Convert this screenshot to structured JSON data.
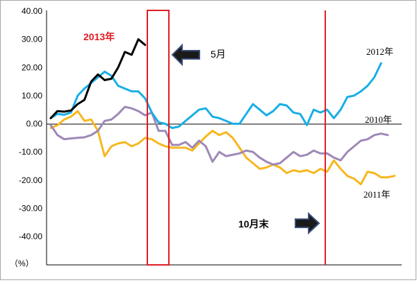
{
  "chart_data": {
    "type": "line",
    "ylim": [
      -40,
      40
    ],
    "yticks": [
      "40.00",
      "30.00",
      "20.00",
      "10.00",
      "0.00",
      "-10.00",
      "-20.00",
      "-30.00",
      "-40.00"
    ],
    "yunit": "（%）",
    "grid": false,
    "series": [
      {
        "name": "2013年",
        "color": "#000000",
        "values": [
          2,
          4.5,
          4.3,
          4.7,
          7,
          8.5,
          15,
          17.5,
          15.5,
          16,
          20,
          25.5,
          24.5,
          30,
          28
        ]
      },
      {
        "name": "2012年",
        "color": "#19aee6",
        "values": [
          2,
          3.5,
          3.2,
          4,
          10,
          12.5,
          14.5,
          16.5,
          18.5,
          17,
          13.5,
          12.5,
          11.5,
          11.5,
          9,
          4,
          0.5,
          0,
          -1.5,
          -1,
          1,
          3,
          5,
          5.5,
          2.5,
          2,
          1,
          0,
          0,
          3.5,
          7,
          5,
          3,
          4.5,
          7,
          6.5,
          4,
          3.5,
          -0.5,
          5,
          4,
          5,
          2,
          5,
          9.5,
          10,
          11.5,
          13.5,
          16.5,
          21.5
        ]
      },
      {
        "name": "2010年",
        "color": "#9d88b6",
        "values": [
          -0.5,
          -4,
          -5.5,
          -5.2,
          -5,
          -4.8,
          -4,
          -2.5,
          1,
          1.5,
          3.5,
          6,
          5.5,
          4.5,
          3,
          4,
          -2.5,
          -2.5,
          -7.5,
          -7.5,
          -6.5,
          -8.5,
          -6,
          -8,
          -13.5,
          -10,
          -11.5,
          -11,
          -10.5,
          -9.5,
          -10,
          -12,
          -13.5,
          -14.5,
          -14,
          -12,
          -10,
          -11.5,
          -11,
          -9.5,
          -10.5,
          -10.5,
          -12,
          -13,
          -10,
          -8,
          -6,
          -5.5,
          -4,
          -3.5,
          -4
        ]
      },
      {
        "name": "2011年",
        "color": "#f7b71e",
        "values": [
          -1.5,
          -0.5,
          1.5,
          2.5,
          4.5,
          1,
          1.5,
          -2.5,
          -11.5,
          -8,
          -7,
          -6.5,
          -8,
          -7,
          -5,
          -5.5,
          -7,
          -8,
          -8.5,
          -8.5,
          -8.5,
          -9.5,
          -7,
          -4.5,
          -2.5,
          -4,
          -3,
          -5,
          -8.5,
          -12,
          -14,
          -16,
          -15.5,
          -14.5,
          -15.5,
          -17.5,
          -16.5,
          -17,
          -16.5,
          -17.5,
          -16,
          -17,
          -13,
          -16,
          -18.5,
          -19.5,
          -21.5,
          -17,
          -17.5,
          -19,
          -19,
          -18.5
        ]
      }
    ],
    "annotations": {
      "may_label": "5月",
      "oct_label": "10月末"
    }
  }
}
